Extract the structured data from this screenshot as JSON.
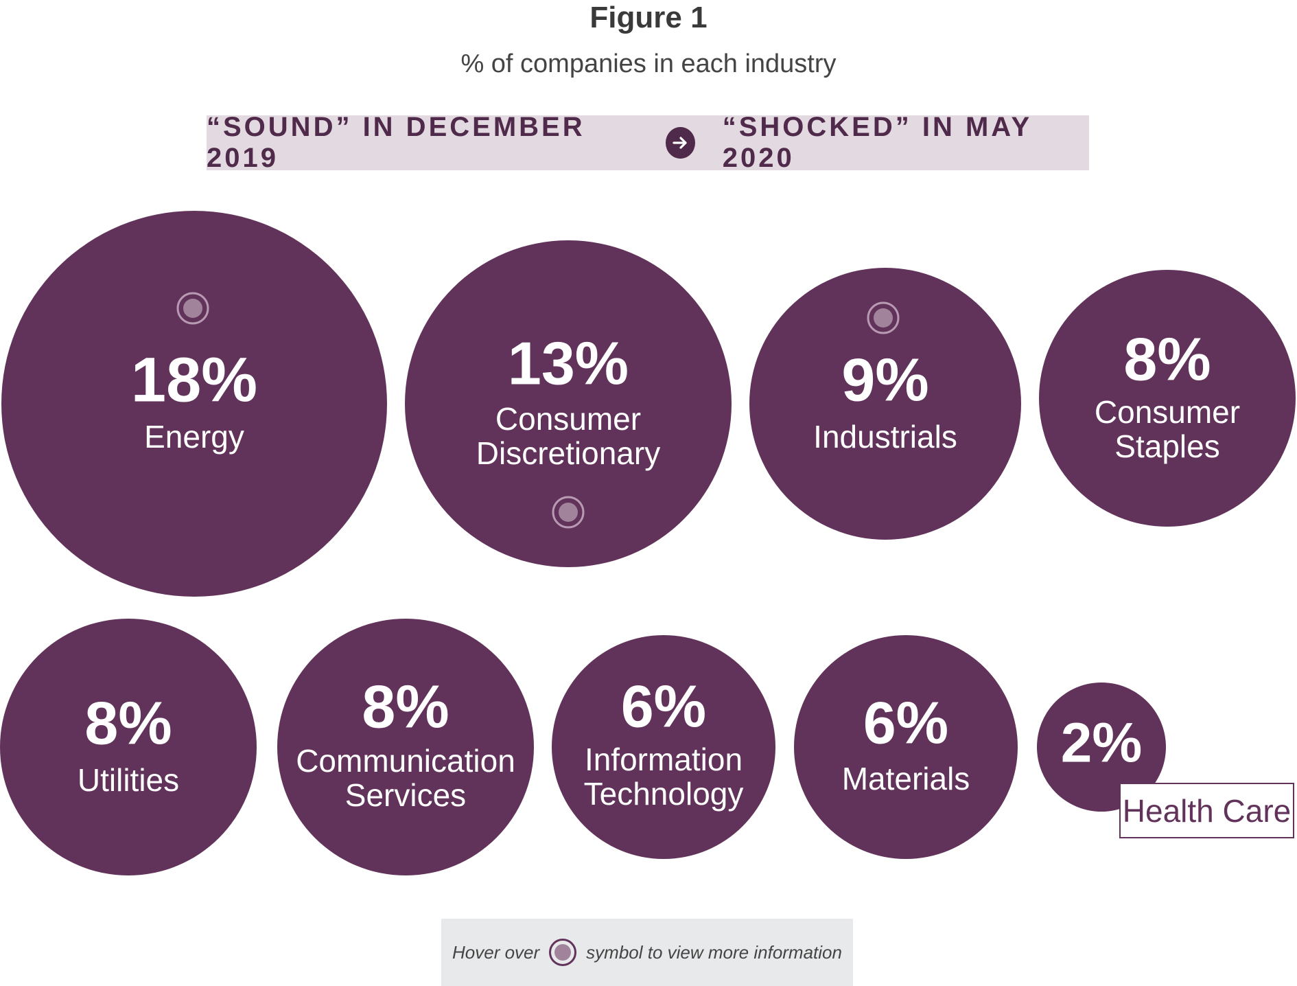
{
  "header": {
    "title": "Figure 1",
    "subtitle": "% of companies in each industry"
  },
  "banner": {
    "from_label": "“SOUND” IN DECEMBER 2019",
    "to_label": "“SHOCKED” IN MAY 2020",
    "arrow_icon": "arrow-right-icon"
  },
  "hint": {
    "before": "Hover over",
    "after": "symbol to view more information",
    "icon": "info-dot-icon"
  },
  "colors": {
    "bubble": "#62335a",
    "hover_dot_fill": "#a1849c",
    "hover_dot_ring": "#b89ab3",
    "banner_bg": "#e3d9e0",
    "banner_text": "#4f2a4a",
    "hint_bg": "#e8e9ea"
  },
  "chart_data": {
    "type": "bubble",
    "title": "Figure 1",
    "subtitle": "% of companies in each industry",
    "unit": "%",
    "items": [
      {
        "label": "Energy",
        "value": 18,
        "display": "18%",
        "hover_marker": true
      },
      {
        "label": "Consumer Discretionary",
        "value": 13,
        "display": "13%",
        "hover_marker": true
      },
      {
        "label": "Industrials",
        "value": 9,
        "display": "9%",
        "hover_marker": true
      },
      {
        "label": "Consumer Staples",
        "value": 8,
        "display": "8%",
        "hover_marker": false
      },
      {
        "label": "Utilities",
        "value": 8,
        "display": "8%",
        "hover_marker": false
      },
      {
        "label": "Communication Services",
        "value": 8,
        "display": "8%",
        "hover_marker": false
      },
      {
        "label": "Information Technology",
        "value": 6,
        "display": "6%",
        "hover_marker": false
      },
      {
        "label": "Materials",
        "value": 6,
        "display": "6%",
        "hover_marker": false
      },
      {
        "label": "Health Care",
        "value": 2,
        "display": "2%",
        "hover_marker": false
      }
    ]
  }
}
